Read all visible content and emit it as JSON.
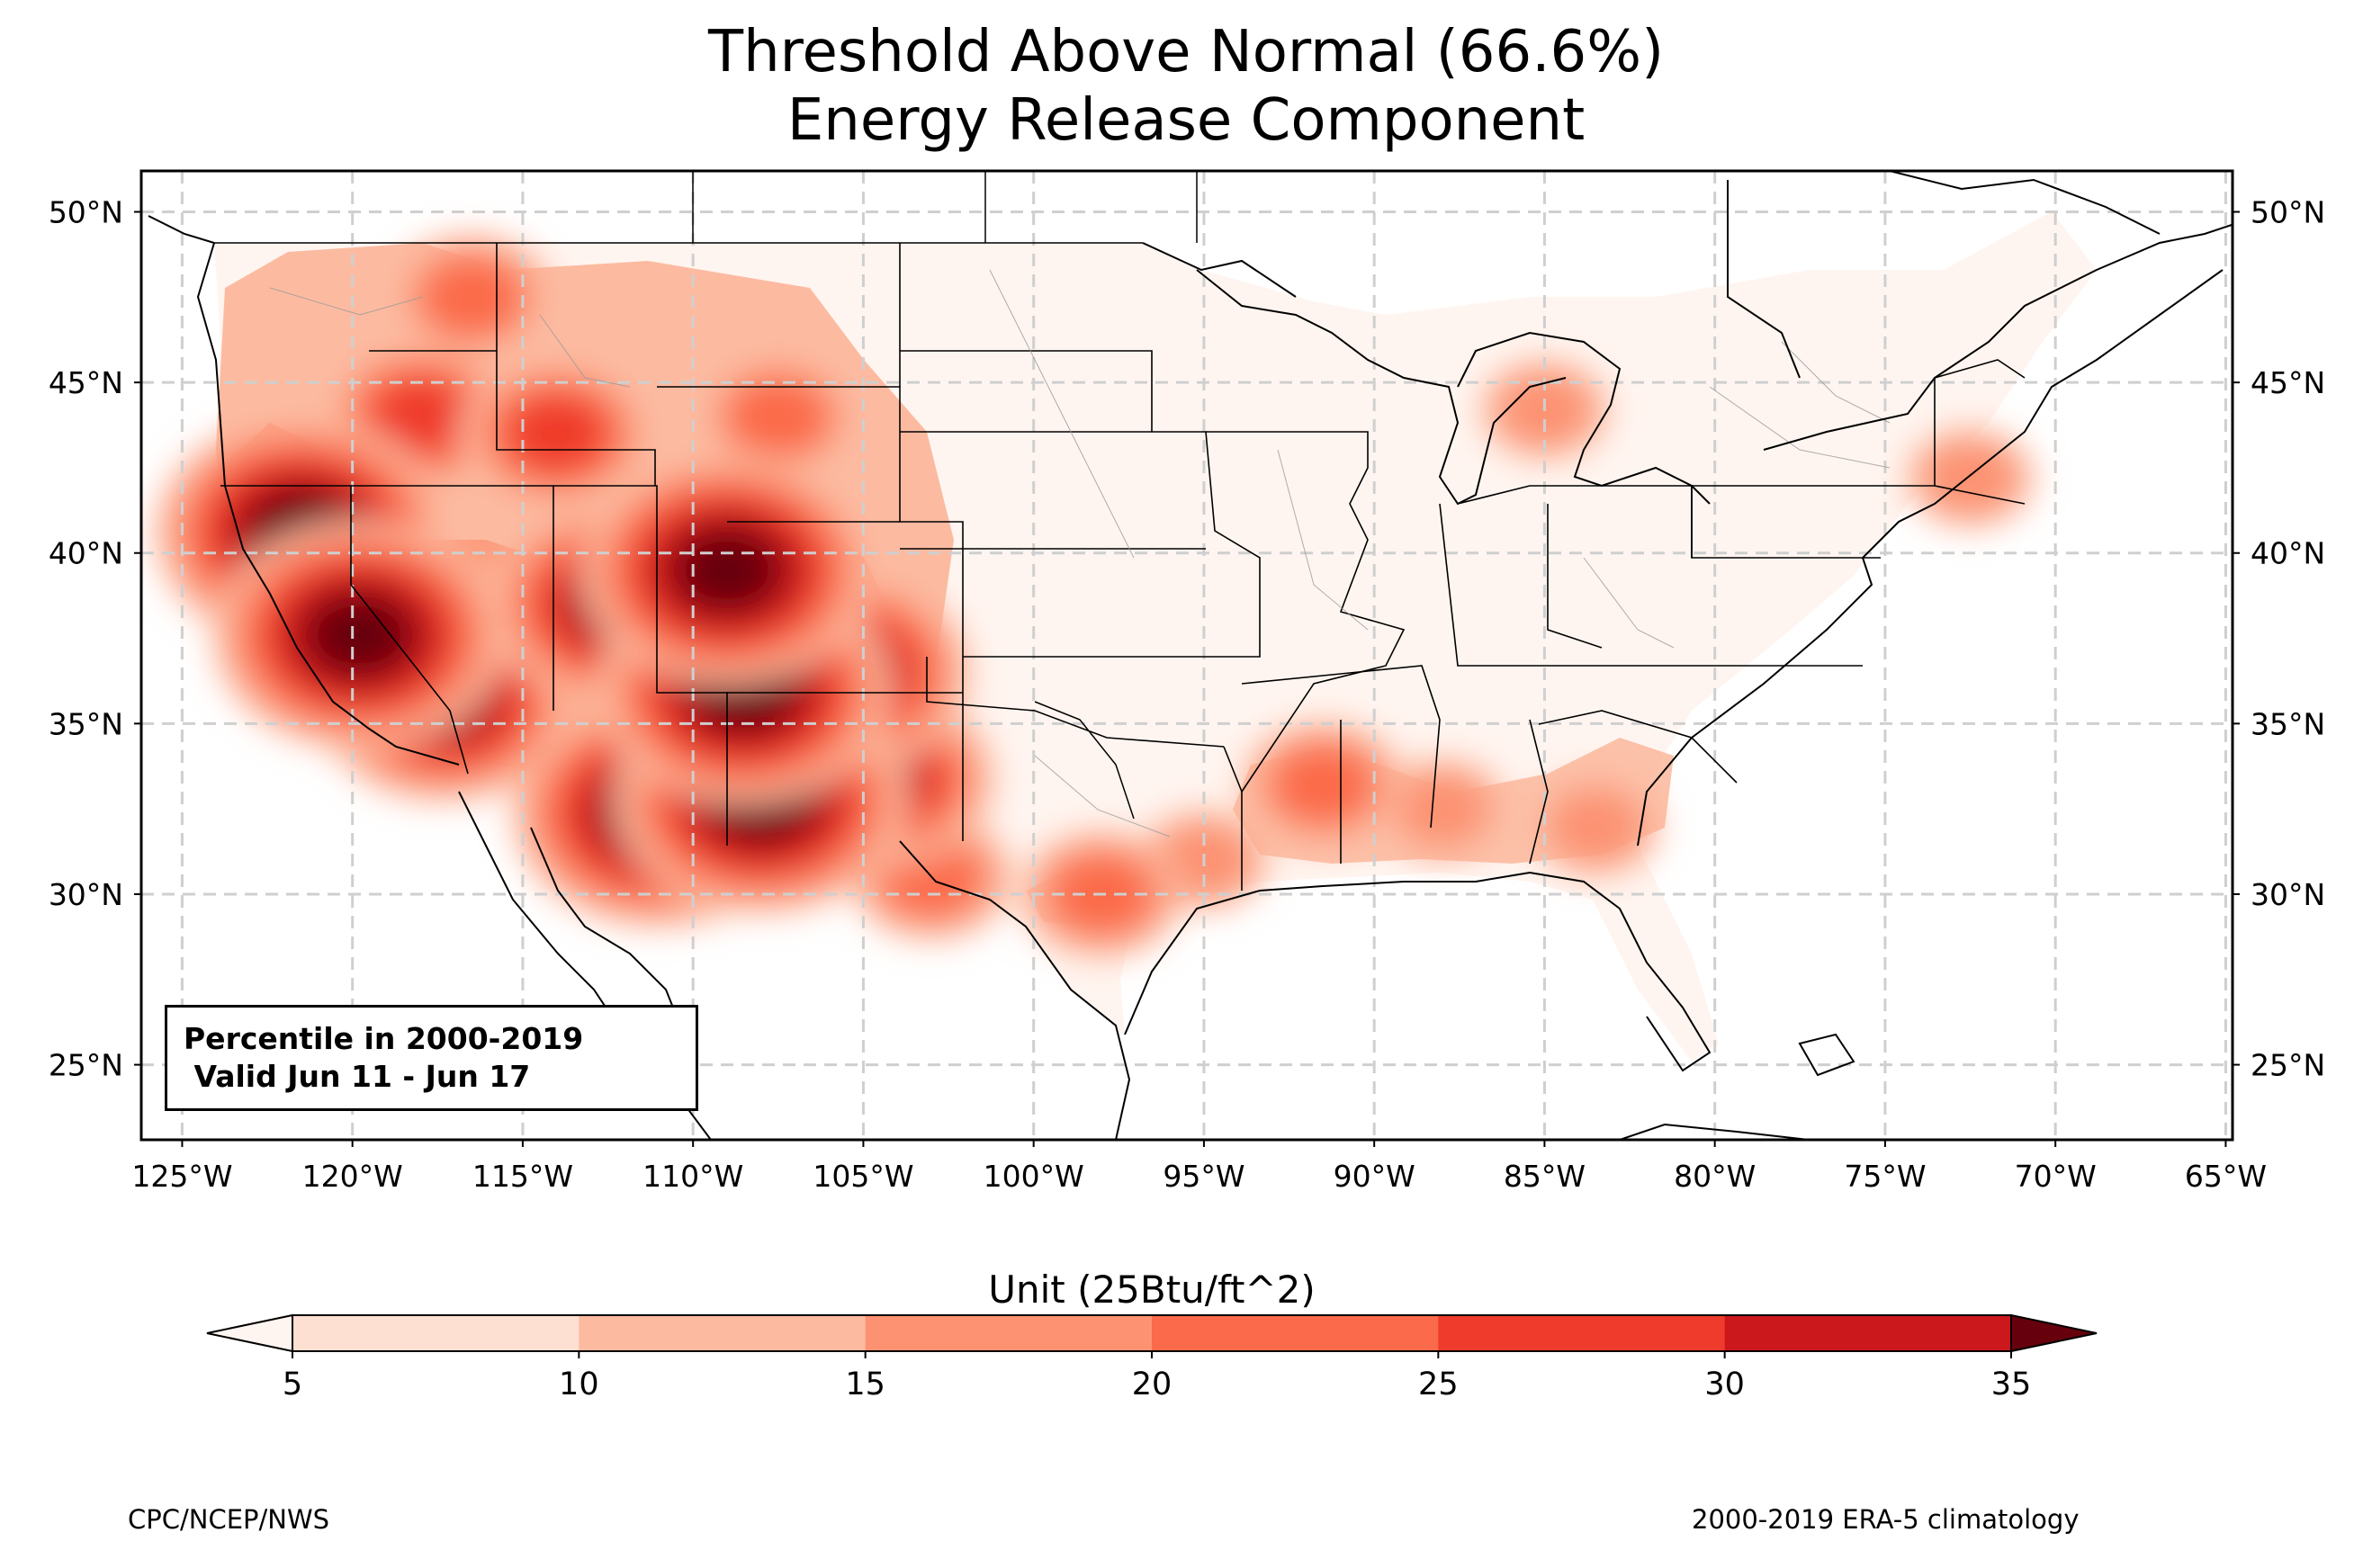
{
  "title_line1": "Threshold Above Normal (66.6%)",
  "title_line2": "Energy Release Component",
  "info_line1": "Percentile in 2000-2019",
  "info_line2": " Valid Jun 11 - Jun 17",
  "colorbar": {
    "title": "Unit (25Btu/ft^2)",
    "ticks": [
      "5",
      "10",
      "15",
      "20",
      "25",
      "30",
      "35"
    ],
    "colors": [
      "#fee0d2",
      "#fcbba1",
      "#fc9272",
      "#fb6a4a",
      "#ef3b2c",
      "#cb181d",
      "#a50f15",
      "#67000d"
    ],
    "under_color": "#fff5f0",
    "over_color": "#67000d"
  },
  "lat_labels": [
    "50°N",
    "45°N",
    "40°N",
    "35°N",
    "30°N",
    "25°N"
  ],
  "lon_labels": [
    "125°W",
    "120°W",
    "115°W",
    "110°W",
    "105°W",
    "100°W",
    "95°W",
    "90°W",
    "85°W",
    "80°W",
    "75°W",
    "70°W",
    "65°W"
  ],
  "footer_left": "CPC/NCEP/NWS",
  "footer_right": "2000-2019 ERA-5 climatology",
  "map_extent": {
    "lon": [
      -126.2,
      -64.8
    ],
    "lat": [
      22.8,
      51.2
    ]
  },
  "hotspots": [
    {
      "lon": -121.5,
      "lat": 40.6,
      "level": 7
    },
    {
      "lon": -119.8,
      "lat": 37.6,
      "level": 7
    },
    {
      "lon": -117.3,
      "lat": 35.7,
      "level": 6
    },
    {
      "lon": -111.0,
      "lat": 32.4,
      "level": 7
    },
    {
      "lon": -108.0,
      "lat": 32.8,
      "level": 7
    },
    {
      "lon": -108.5,
      "lat": 36.0,
      "level": 7
    },
    {
      "lon": -109.0,
      "lat": 39.5,
      "level": 7
    },
    {
      "lon": -112.2,
      "lat": 38.5,
      "level": 6
    },
    {
      "lon": -105.7,
      "lat": 36.5,
      "level": 6
    },
    {
      "lon": -104.5,
      "lat": 33.4,
      "level": 5
    },
    {
      "lon": -118.0,
      "lat": 44.0,
      "level": 4
    },
    {
      "lon": -114.0,
      "lat": 43.5,
      "level": 4
    },
    {
      "lon": -116.5,
      "lat": 47.5,
      "level": 3
    },
    {
      "lon": -107.5,
      "lat": 44.0,
      "level": 3
    },
    {
      "lon": -88.0,
      "lat": 32.5,
      "level": 2
    },
    {
      "lon": -91.5,
      "lat": 33.2,
      "level": 3
    },
    {
      "lon": -83.5,
      "lat": 32.0,
      "level": 2
    },
    {
      "lon": -98.0,
      "lat": 30.0,
      "level": 3
    },
    {
      "lon": -95.0,
      "lat": 31.0,
      "level": 2
    },
    {
      "lon": -85.0,
      "lat": 44.2,
      "level": 2
    },
    {
      "lon": -72.5,
      "lat": 42.2,
      "level": 2
    },
    {
      "lon": -103.0,
      "lat": 30.5,
      "level": 3
    }
  ]
}
